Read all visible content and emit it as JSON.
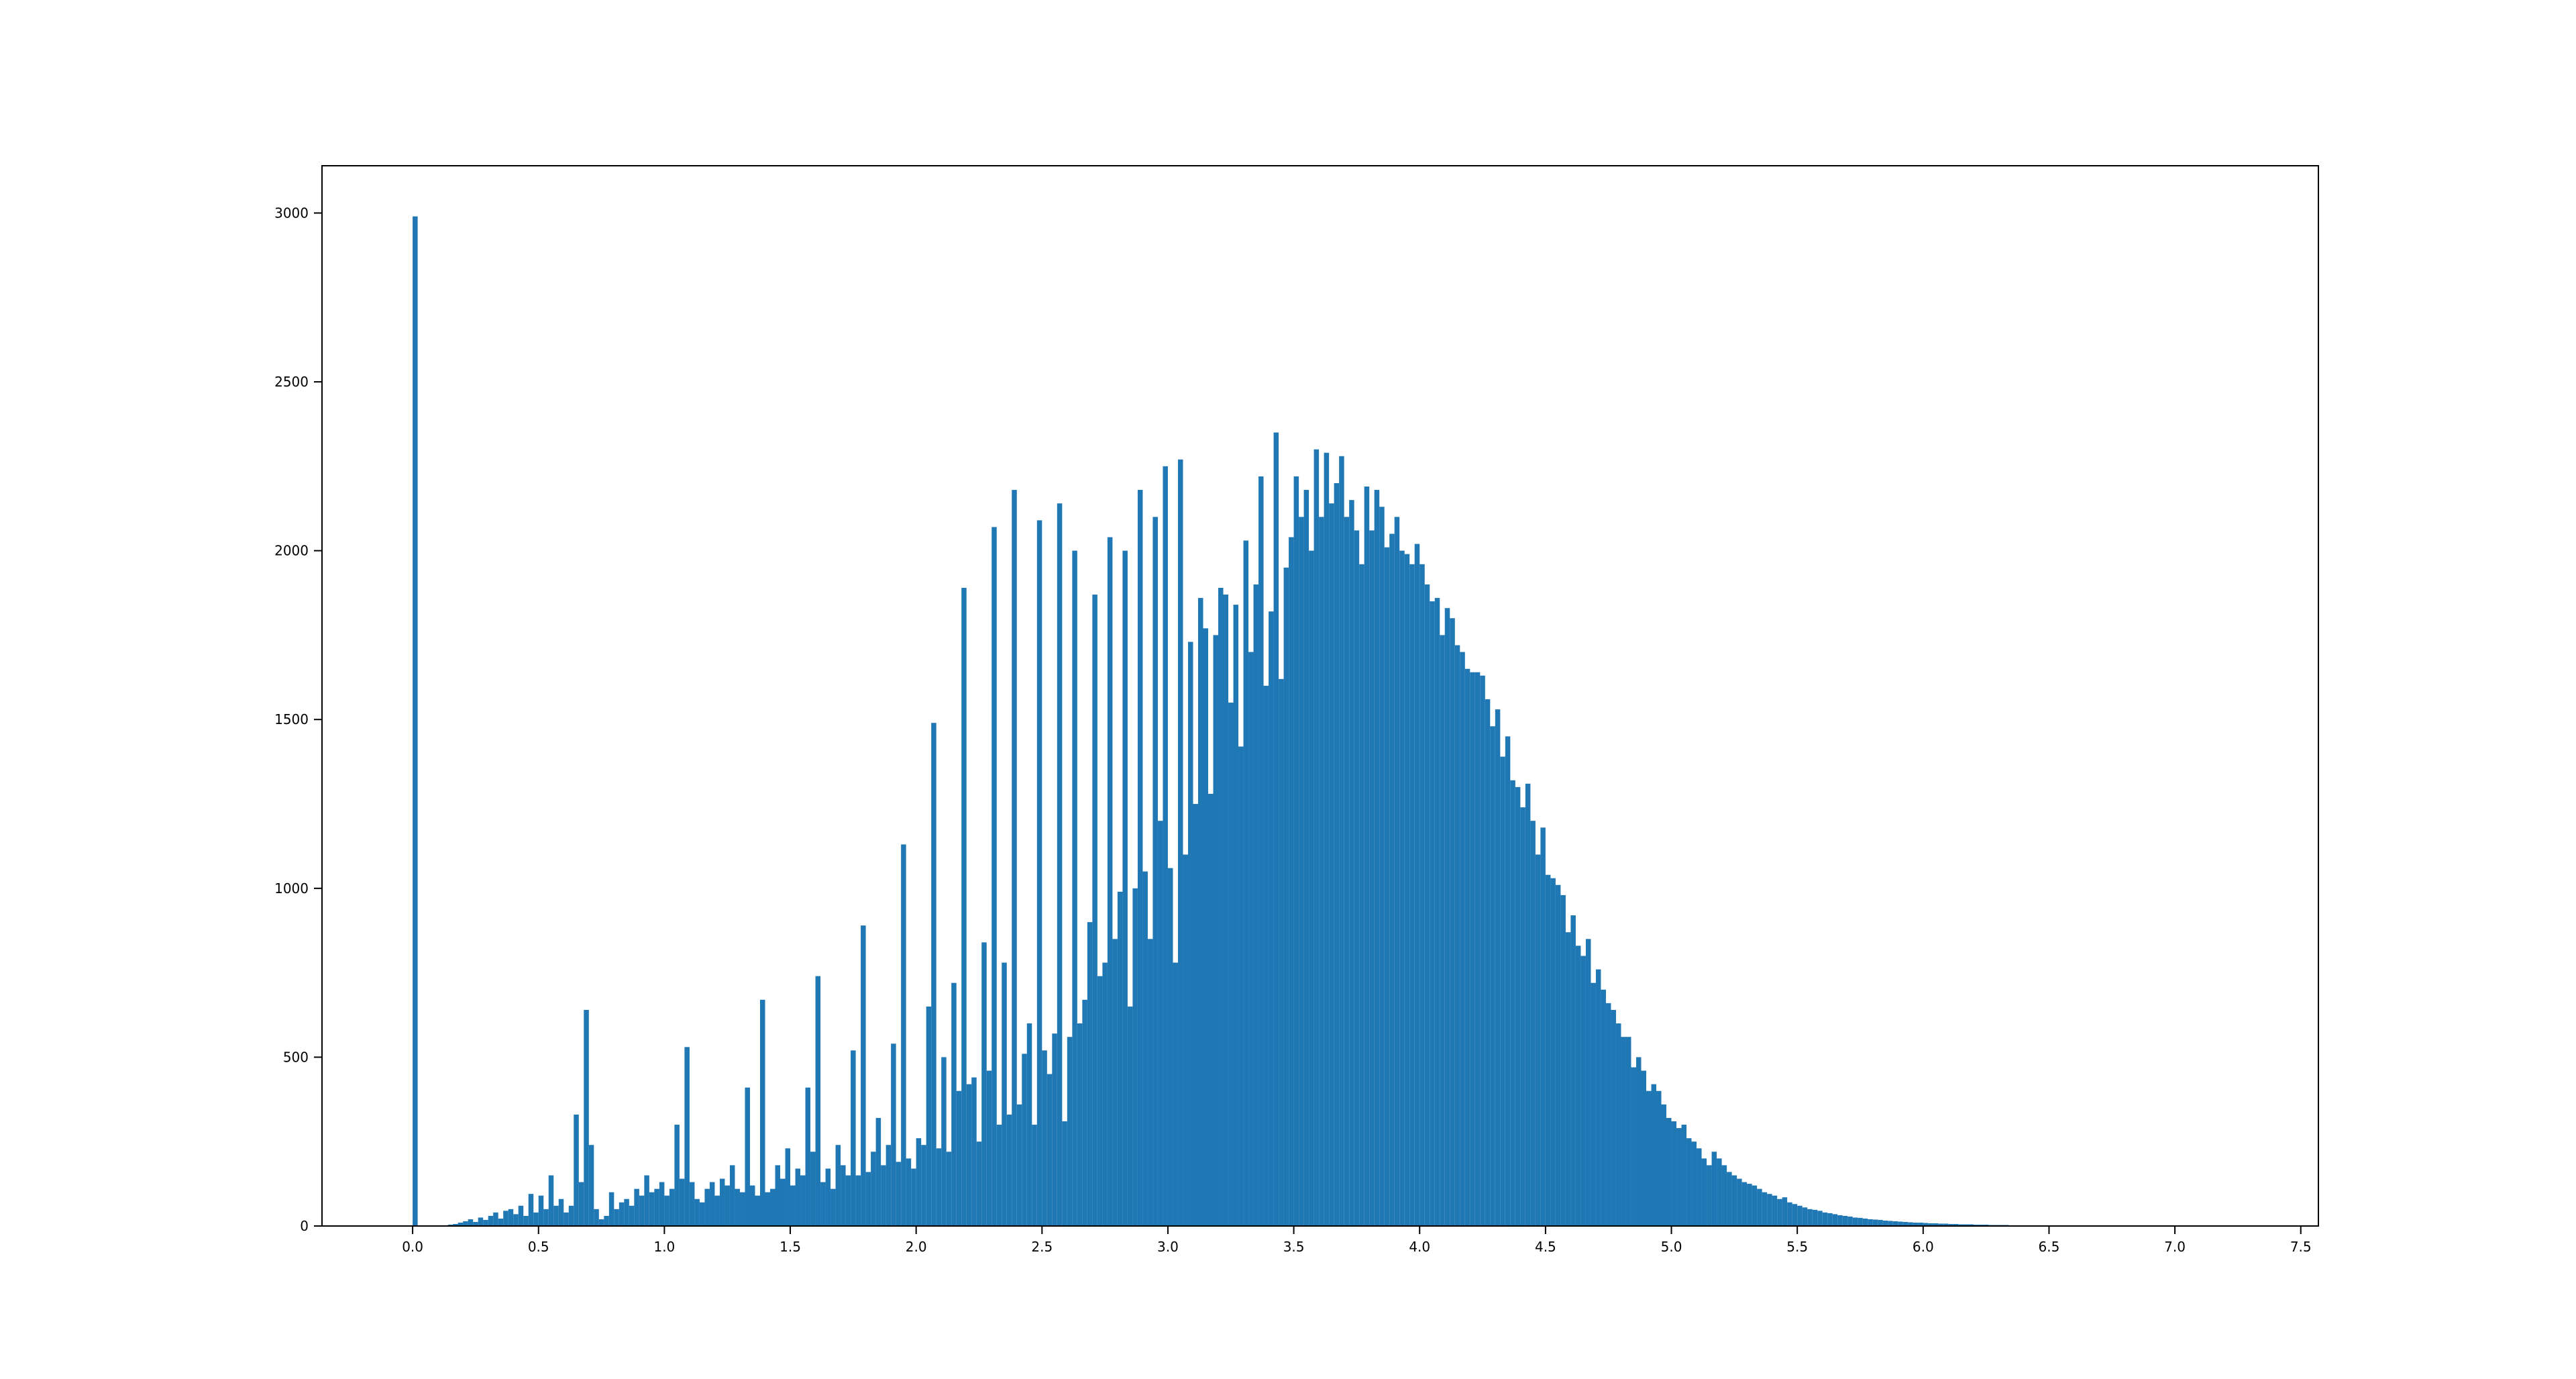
{
  "chart_data": {
    "type": "histogram",
    "color": "#1f77b4",
    "bins": [
      0,
      0.02,
      0.04,
      0.06,
      0.08,
      0.1,
      0.12,
      0.14,
      0.16,
      0.18,
      0.2,
      0.22,
      0.24,
      0.26,
      0.28,
      0.3,
      0.32,
      0.34,
      0.36,
      0.38,
      0.4,
      0.42,
      0.44,
      0.46,
      0.48,
      0.5,
      0.52,
      0.54,
      0.56,
      0.58,
      0.6,
      0.62,
      0.64,
      0.66,
      0.68,
      0.7,
      0.72,
      0.74,
      0.76,
      0.78,
      0.8,
      0.82,
      0.84,
      0.86,
      0.88,
      0.9,
      0.92,
      0.94,
      0.96,
      0.98,
      1,
      1.02,
      1.04,
      1.06,
      1.08,
      1.1,
      1.12,
      1.14,
      1.16,
      1.18,
      1.2,
      1.22,
      1.24,
      1.26,
      1.28,
      1.3,
      1.32,
      1.34,
      1.36,
      1.38,
      1.4,
      1.42,
      1.44,
      1.46,
      1.48,
      1.5,
      1.52,
      1.54,
      1.56,
      1.58,
      1.6,
      1.62,
      1.64,
      1.66,
      1.68,
      1.7,
      1.72,
      1.74,
      1.76,
      1.78,
      1.8,
      1.82,
      1.84,
      1.86,
      1.88,
      1.9,
      1.92,
      1.94,
      1.96,
      1.98,
      2,
      2.02,
      2.04,
      2.06,
      2.08,
      2.1,
      2.12,
      2.14,
      2.16,
      2.18,
      2.2,
      2.22,
      2.24,
      2.26,
      2.28,
      2.3,
      2.32,
      2.34,
      2.36,
      2.38,
      2.4,
      2.42,
      2.44,
      2.46,
      2.48,
      2.5,
      2.52,
      2.54,
      2.56,
      2.58,
      2.6,
      2.62,
      2.64,
      2.66,
      2.68,
      2.7,
      2.72,
      2.74,
      2.76,
      2.78,
      2.8,
      2.82,
      2.84,
      2.86,
      2.88,
      2.9,
      2.92,
      2.94,
      2.96,
      2.98,
      3,
      3.02,
      3.04,
      3.06,
      3.08,
      3.1,
      3.12,
      3.14,
      3.16,
      3.18,
      3.2,
      3.22,
      3.24,
      3.26,
      3.28,
      3.3,
      3.32,
      3.34,
      3.36,
      3.38,
      3.4,
      3.42,
      3.44,
      3.46,
      3.48,
      3.5,
      3.52,
      3.54,
      3.56,
      3.58,
      3.6,
      3.62,
      3.64,
      3.66,
      3.68,
      3.7,
      3.72,
      3.74,
      3.76,
      3.78,
      3.8,
      3.82,
      3.84,
      3.86,
      3.88,
      3.9,
      3.92,
      3.94,
      3.96,
      3.98,
      4,
      4.02,
      4.04,
      4.06,
      4.08,
      4.1,
      4.12,
      4.14,
      4.16,
      4.18,
      4.2,
      4.22,
      4.24,
      4.26,
      4.28,
      4.3,
      4.32,
      4.34,
      4.36,
      4.38,
      4.4,
      4.42,
      4.44,
      4.46,
      4.48,
      4.5,
      4.52,
      4.54,
      4.56,
      4.58,
      4.6,
      4.62,
      4.64,
      4.66,
      4.68,
      4.7,
      4.72,
      4.74,
      4.76,
      4.78,
      4.8,
      4.82,
      4.84,
      4.86,
      4.88,
      4.9,
      4.92,
      4.94,
      4.96,
      4.98,
      5,
      5.02,
      5.04,
      5.06,
      5.08,
      5.1,
      5.12,
      5.14,
      5.16,
      5.18,
      5.2,
      5.22,
      5.24,
      5.26,
      5.28,
      5.3,
      5.32,
      5.34,
      5.36,
      5.38,
      5.4,
      5.42,
      5.44,
      5.46,
      5.48,
      5.5,
      5.52,
      5.54,
      5.56,
      5.58,
      5.6,
      5.62,
      5.64,
      5.66,
      5.68,
      5.7,
      5.72,
      5.74,
      5.76,
      5.78,
      5.8,
      5.82,
      5.84,
      5.86,
      5.88,
      5.9,
      5.92,
      5.94,
      5.96,
      5.98,
      6,
      6.02,
      6.04,
      6.06,
      6.08,
      6.1,
      6.12,
      6.14,
      6.16,
      6.18,
      6.2,
      6.22,
      6.24,
      6.26,
      6.28,
      6.3,
      6.32,
      6.34,
      6.36,
      6.38,
      6.4,
      6.42,
      6.44,
      6.46,
      6.48,
      6.5,
      6.52,
      6.54,
      6.56,
      6.58,
      6.6,
      6.62,
      6.64,
      6.66,
      6.68,
      6.7,
      6.72,
      6.74,
      6.76,
      6.78,
      6.8,
      6.82,
      6.84,
      6.86,
      6.88,
      6.9,
      6.92,
      6.94,
      6.96,
      6.98,
      7,
      7.02,
      7.04,
      7.06,
      7.08,
      7.1,
      7.12,
      7.14,
      7.16,
      7.18,
      7.2,
      7.22
    ],
    "values": [
      2990,
      0,
      0,
      0,
      0,
      0,
      2,
      4,
      6,
      10,
      14,
      20,
      12,
      25,
      18,
      30,
      40,
      22,
      45,
      50,
      35,
      60,
      30,
      95,
      40,
      90,
      50,
      150,
      60,
      80,
      40,
      60,
      330,
      130,
      640,
      240,
      50,
      20,
      30,
      100,
      50,
      70,
      80,
      60,
      110,
      90,
      150,
      100,
      110,
      130,
      90,
      110,
      300,
      140,
      530,
      130,
      80,
      70,
      110,
      130,
      90,
      140,
      120,
      180,
      110,
      100,
      410,
      120,
      90,
      670,
      100,
      110,
      180,
      140,
      230,
      120,
      170,
      150,
      410,
      220,
      740,
      130,
      170,
      110,
      240,
      180,
      150,
      520,
      150,
      890,
      160,
      220,
      320,
      180,
      240,
      540,
      190,
      1130,
      200,
      170,
      260,
      240,
      650,
      1490,
      230,
      500,
      220,
      720,
      400,
      1890,
      420,
      440,
      250,
      840,
      460,
      2070,
      300,
      780,
      330,
      2180,
      360,
      510,
      600,
      300,
      2090,
      520,
      450,
      570,
      2140,
      310,
      560,
      2000,
      600,
      670,
      900,
      1870,
      740,
      780,
      2040,
      850,
      990,
      2000,
      650,
      1000,
      2180,
      1050,
      850,
      2100,
      1200,
      2250,
      1060,
      780,
      2270,
      1100,
      1730,
      1250,
      1860,
      1770,
      1280,
      1750,
      1890,
      1870,
      1550,
      1840,
      1420,
      2030,
      1700,
      1900,
      2220,
      1600,
      1820,
      2350,
      1620,
      1950,
      2040,
      2220,
      2100,
      2180,
      2000,
      2300,
      2100,
      2290,
      2140,
      2200,
      2280,
      2100,
      2150,
      2060,
      1960,
      2190,
      2060,
      2180,
      2130,
      2010,
      2050,
      2100,
      2000,
      1990,
      1960,
      2020,
      1960,
      1900,
      1850,
      1860,
      1750,
      1830,
      1800,
      1720,
      1700,
      1650,
      1640,
      1640,
      1630,
      1560,
      1480,
      1530,
      1390,
      1450,
      1320,
      1300,
      1240,
      1310,
      1200,
      1100,
      1180,
      1040,
      1030,
      1010,
      980,
      870,
      920,
      830,
      800,
      850,
      720,
      760,
      700,
      660,
      640,
      600,
      560,
      560,
      470,
      500,
      460,
      400,
      420,
      400,
      360,
      320,
      310,
      290,
      300,
      260,
      250,
      230,
      200,
      180,
      220,
      200,
      180,
      160,
      150,
      140,
      130,
      125,
      120,
      110,
      100,
      95,
      90,
      80,
      85,
      70,
      65,
      60,
      55,
      50,
      48,
      45,
      40,
      38,
      35,
      32,
      30,
      28,
      25,
      24,
      22,
      20,
      19,
      18,
      16,
      15,
      14,
      13,
      12,
      11,
      10,
      10,
      9,
      8,
      8,
      7,
      7,
      6,
      6,
      5,
      5,
      5,
      4,
      4,
      4,
      3,
      3,
      3,
      3,
      2,
      2,
      2,
      2,
      2,
      2,
      2,
      1,
      1,
      1,
      1,
      1,
      1,
      1,
      1,
      1,
      1,
      0,
      1,
      1,
      0,
      1,
      0,
      1,
      0,
      1,
      0,
      0,
      1,
      0,
      0,
      1,
      0,
      0,
      1,
      0,
      0,
      0,
      0,
      1,
      0,
      0,
      0,
      1
    ],
    "xlim": [
      -0.36,
      7.57
    ],
    "ylim": [
      0,
      3140
    ],
    "xticks": [
      {
        "value": 0,
        "label": "0.0"
      },
      0.5,
      {
        "value": 1,
        "label": "1.0"
      },
      1.5,
      {
        "value": 2,
        "label": "2.0"
      },
      2.5,
      {
        "value": 3,
        "label": "3.0"
      },
      3.5,
      {
        "value": 4,
        "label": "4.0"
      },
      4.5,
      {
        "value": 5,
        "label": "5.0"
      },
      5.5,
      {
        "value": 6,
        "label": "6.0"
      },
      6.5,
      {
        "value": 7,
        "label": "7.0"
      },
      7.5
    ],
    "yticks": [
      0,
      500,
      1000,
      1500,
      2000,
      2500,
      3000
    ]
  }
}
